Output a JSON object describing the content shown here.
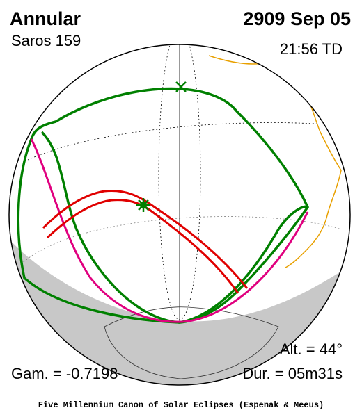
{
  "header": {
    "title": "Annular",
    "saros": "Saros 159",
    "date": "2909 Sep 05",
    "time": "21:56 TD"
  },
  "stats": {
    "altitude": "Alt. = 44°",
    "gamma": "Gam. = -0.7198",
    "duration": "Dur. = 05m31s"
  },
  "footer": "Five Millennium Canon of Solar Eclipses (Espenak & Meeus)"
}
